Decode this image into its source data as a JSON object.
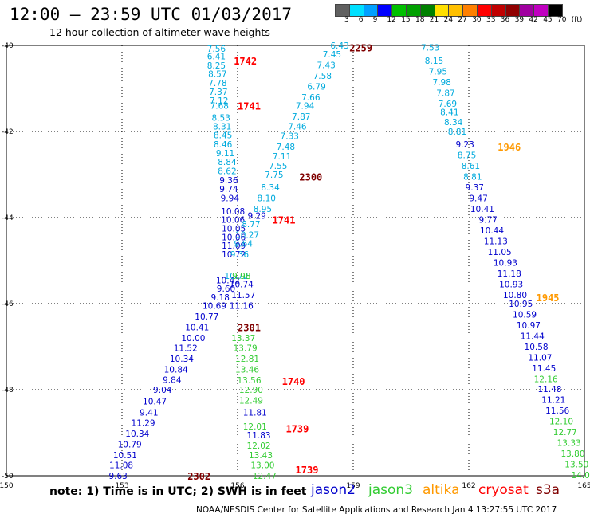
{
  "header": {
    "title": "12:00 — 23:59 UTC 01/03/2017",
    "subtitle": "12 hour collection of altimeter wave heights"
  },
  "color_scale": {
    "ticks": [
      "3",
      "6",
      "9",
      "12",
      "15",
      "18",
      "21",
      "24",
      "27",
      "30",
      "33",
      "36",
      "39",
      "42",
      "45",
      "70",
      "(ft)"
    ],
    "colors": [
      "#606060",
      "#00e0ff",
      "#00a0ff",
      "#0000ff",
      "#00c000",
      "#00a000",
      "#008000",
      "#ffe000",
      "#ffc000",
      "#ff8000",
      "#ff0000",
      "#c00000",
      "#900000",
      "#a000a0",
      "#c000c0",
      "#000000"
    ]
  },
  "axes": {
    "x_ticks": [
      "150",
      "153",
      "156",
      "159",
      "162",
      "165"
    ],
    "y_ticks": [
      "-40",
      "-42",
      "-44",
      "-46",
      "-48",
      "-50"
    ]
  },
  "track_colors": {
    "jason2": "#0000cc",
    "jason3": "#33cc33",
    "altika": "#ff9900",
    "cryosat": "#ff0000",
    "s3a": "#800000",
    "light": "#00aadd"
  },
  "time_labels": [
    {
      "text": "2259",
      "sat": "s3a",
      "lon": 159.2,
      "lat": -40.05
    },
    {
      "text": "1742",
      "sat": "cryosat",
      "lon": 156.2,
      "lat": -40.35
    },
    {
      "text": "1741",
      "sat": "cryosat",
      "lon": 156.3,
      "lat": -41.4
    },
    {
      "text": "2300",
      "sat": "s3a",
      "lon": 157.9,
      "lat": -43.05
    },
    {
      "text": "1741",
      "sat": "cryosat",
      "lon": 157.2,
      "lat": -44.05
    },
    {
      "text": "1946",
      "sat": "altika",
      "lon": 163.05,
      "lat": -42.35
    },
    {
      "text": "1945",
      "sat": "altika",
      "lon": 164.05,
      "lat": -45.85
    },
    {
      "text": "2301",
      "sat": "s3a",
      "lon": 156.3,
      "lat": -46.55
    },
    {
      "text": "1740",
      "sat": "cryosat",
      "lon": 157.45,
      "lat": -47.8
    },
    {
      "text": "1739",
      "sat": "cryosat",
      "lon": 157.55,
      "lat": -48.9
    },
    {
      "text": "1739",
      "sat": "cryosat",
      "lon": 157.8,
      "lat": -49.85
    },
    {
      "text": "2302",
      "sat": "s3a",
      "lon": 155.0,
      "lat": -50.0
    }
  ],
  "tracks": [
    {
      "sat": "light",
      "points": [
        [
          "7.56",
          155.45,
          -40.07
        ],
        [
          "6.41",
          155.45,
          -40.25
        ],
        [
          "8.25",
          155.45,
          -40.46
        ],
        [
          "8.57",
          155.48,
          -40.66
        ],
        [
          "7.78",
          155.48,
          -40.87
        ],
        [
          "7.37",
          155.5,
          -41.07
        ],
        [
          "7.12",
          155.52,
          -41.28
        ],
        [
          "7.68",
          155.53,
          -41.4
        ],
        [
          "8.53",
          155.57,
          -41.68
        ],
        [
          "8.31",
          155.6,
          -41.88
        ],
        [
          "8.45",
          155.62,
          -42.08
        ],
        [
          "8.46",
          155.62,
          -42.3
        ],
        [
          "9.11",
          155.68,
          -42.5
        ],
        [
          "8.84",
          155.73,
          -42.7
        ],
        [
          "8.62",
          155.73,
          -42.92
        ]
      ]
    },
    {
      "sat": "jason2",
      "points": [
        [
          "9.36",
          155.77,
          -43.13
        ],
        [
          "9.74",
          155.77,
          -43.33
        ],
        [
          "9.94",
          155.8,
          -43.55
        ],
        [
          "10.08",
          155.88,
          -43.85
        ],
        [
          "10.06",
          155.88,
          -44.05
        ],
        [
          "10.05",
          155.9,
          -44.25
        ],
        [
          "10.06",
          155.9,
          -44.45
        ],
        [
          "11.09",
          155.9,
          -44.65
        ],
        [
          "10.72",
          155.9,
          -44.85
        ],
        [
          "10.42",
          155.75,
          -45.45
        ],
        [
          "9.60",
          155.7,
          -45.65
        ],
        [
          "9.18",
          155.55,
          -45.85
        ],
        [
          "10.69",
          155.4,
          -46.05
        ],
        [
          "10.77",
          155.2,
          -46.3
        ],
        [
          "10.41",
          154.95,
          -46.55
        ],
        [
          "10.00",
          154.85,
          -46.8
        ],
        [
          "11.52",
          154.65,
          -47.03
        ],
        [
          "10.34",
          154.55,
          -47.28
        ],
        [
          "10.84",
          154.4,
          -47.53
        ],
        [
          "9.84",
          154.3,
          -47.77
        ],
        [
          "9.04",
          154.05,
          -48.0
        ],
        [
          "10.47",
          153.85,
          -48.27
        ],
        [
          "9.41",
          153.7,
          -48.53
        ],
        [
          "11.29",
          153.55,
          -48.77
        ],
        [
          "10.34",
          153.4,
          -49.02
        ],
        [
          "10.79",
          153.2,
          -49.27
        ],
        [
          "10.51",
          153.08,
          -49.52
        ],
        [
          "11.08",
          152.98,
          -49.75
        ],
        [
          "9.63",
          152.9,
          -50.0
        ]
      ]
    },
    {
      "sat": "light",
      "points": [
        [
          "6.43",
          158.65,
          -40.0
        ],
        [
          "7.45",
          158.45,
          -40.2
        ],
        [
          "7.43",
          158.3,
          -40.45
        ],
        [
          "7.58",
          158.2,
          -40.7
        ],
        [
          "6.79",
          158.05,
          -40.95
        ],
        [
          "7.66",
          157.9,
          -41.2
        ],
        [
          "7.94",
          157.75,
          -41.4
        ],
        [
          "7.87",
          157.65,
          -41.65
        ],
        [
          "7.46",
          157.55,
          -41.88
        ],
        [
          "7.33",
          157.35,
          -42.1
        ],
        [
          "7.48",
          157.25,
          -42.35
        ],
        [
          "7.11",
          157.15,
          -42.57
        ],
        [
          "7.55",
          157.05,
          -42.8
        ],
        [
          "7.75",
          156.95,
          -43.0
        ],
        [
          "8.34",
          156.85,
          -43.3
        ],
        [
          "8.10",
          156.75,
          -43.55
        ],
        [
          "8.95",
          156.65,
          -43.8
        ],
        [
          "8.77",
          156.35,
          -44.15
        ],
        [
          "10.27",
          156.25,
          -44.4
        ],
        [
          "9.64",
          156.15,
          -44.6
        ],
        [
          "9.36",
          156.05,
          -44.85
        ],
        [
          "10.72",
          155.97,
          -45.35
        ]
      ]
    },
    {
      "sat": "jason2",
      "points": [
        [
          "9.29",
          156.5,
          -43.95
        ],
        [
          "10.74",
          156.1,
          -45.55
        ],
        [
          "11.57",
          156.15,
          -45.8
        ],
        [
          "11.16",
          156.1,
          -46.05
        ]
      ]
    },
    {
      "sat": "jason3",
      "points": [
        [
          "9.98",
          156.1,
          -45.35
        ],
        [
          "13.37",
          156.15,
          -46.8
        ],
        [
          "13.79",
          156.2,
          -47.03
        ],
        [
          "12.81",
          156.25,
          -47.28
        ],
        [
          "13.46",
          156.25,
          -47.53
        ],
        [
          "13.56",
          156.3,
          -47.78
        ],
        [
          "12.90",
          156.35,
          -48.0
        ],
        [
          "12.49",
          156.35,
          -48.25
        ],
        [
          "12.01",
          156.45,
          -48.85
        ],
        [
          "12.02",
          156.55,
          -49.3
        ],
        [
          "13.43",
          156.6,
          -49.52
        ],
        [
          "13.00",
          156.65,
          -49.75
        ],
        [
          "12.47",
          156.7,
          -50.0
        ]
      ]
    },
    {
      "sat": "jason2",
      "points": [
        [
          "11.81",
          156.45,
          -48.53
        ],
        [
          "11.83",
          156.55,
          -49.06
        ]
      ]
    },
    {
      "sat": "light",
      "points": [
        [
          "7.53",
          161.0,
          -40.05
        ],
        [
          "8.15",
          161.1,
          -40.35
        ],
        [
          "7.95",
          161.2,
          -40.6
        ],
        [
          "7.98",
          161.3,
          -40.85
        ],
        [
          "7.87",
          161.4,
          -41.1
        ],
        [
          "7.69",
          161.45,
          -41.35
        ],
        [
          "8.41",
          161.5,
          -41.55
        ],
        [
          "8.34",
          161.6,
          -41.78
        ],
        [
          "8.81",
          161.7,
          -42.0
        ],
        [
          "8.75",
          161.95,
          -42.55
        ],
        [
          "8.61",
          162.05,
          -42.8
        ],
        [
          "8.81",
          162.1,
          -43.05
        ]
      ]
    },
    {
      "sat": "jason2",
      "points": [
        [
          "9.23",
          161.9,
          -42.3
        ],
        [
          "9.37",
          162.15,
          -43.3
        ],
        [
          "9.47",
          162.25,
          -43.55
        ],
        [
          "10.41",
          162.35,
          -43.8
        ],
        [
          "9.77",
          162.5,
          -44.05
        ],
        [
          "10.44",
          162.6,
          -44.3
        ],
        [
          "11.13",
          162.7,
          -44.55
        ],
        [
          "11.05",
          162.8,
          -44.8
        ],
        [
          "10.93",
          162.95,
          -45.05
        ],
        [
          "11.18",
          163.05,
          -45.3
        ],
        [
          "10.93",
          163.1,
          -45.55
        ],
        [
          "10.80",
          163.2,
          -45.8
        ],
        [
          "10.95",
          163.35,
          -46.0
        ],
        [
          "10.59",
          163.45,
          -46.25
        ],
        [
          "10.97",
          163.55,
          -46.5
        ],
        [
          "11.44",
          163.65,
          -46.75
        ],
        [
          "10.58",
          163.75,
          -47.0
        ],
        [
          "11.07",
          163.85,
          -47.25
        ],
        [
          "11.45",
          163.95,
          -47.5
        ],
        [
          "11.48",
          164.1,
          -47.98
        ],
        [
          "11.21",
          164.2,
          -48.23
        ],
        [
          "11.56",
          164.3,
          -48.48
        ]
      ]
    },
    {
      "sat": "jason3",
      "points": [
        [
          "12.16",
          164.0,
          -47.75
        ],
        [
          "12.10",
          164.4,
          -48.73
        ],
        [
          "12.77",
          164.5,
          -48.98
        ],
        [
          "13.33",
          164.6,
          -49.23
        ],
        [
          "13.80",
          164.7,
          -49.48
        ],
        [
          "13.50",
          164.8,
          -49.73
        ],
        [
          "14.0",
          164.9,
          -49.98
        ]
      ]
    }
  ],
  "footer": {
    "note": "note: 1) Time is in UTC; 2) SWH is in feet",
    "satellites": [
      {
        "label": "jason2",
        "color": "#0000cc"
      },
      {
        "label": "jason3",
        "color": "#33cc33"
      },
      {
        "label": "altika",
        "color": "#ff9900"
      },
      {
        "label": "cryosat",
        "color": "#ff0000"
      },
      {
        "label": "s3a",
        "color": "#800000"
      }
    ],
    "credit": "NOAA/NESDIS Center for Satellite Applications and Research     Jan  4 13:27:55 UTC 2017"
  }
}
